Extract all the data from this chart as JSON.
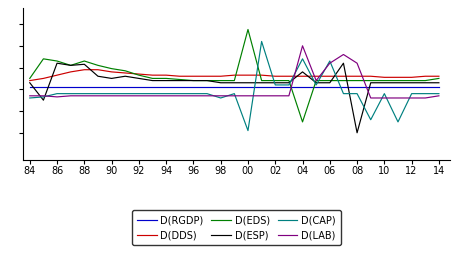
{
  "years": [
    1984,
    1985,
    1986,
    1987,
    1988,
    1989,
    1990,
    1991,
    1992,
    1993,
    1994,
    1995,
    1996,
    1997,
    1998,
    1999,
    2000,
    2001,
    2002,
    2003,
    2004,
    2005,
    2006,
    2007,
    2008,
    2009,
    2010,
    2011,
    2012,
    2013,
    2014
  ],
  "RGDP": [
    0.02,
    0.02,
    0.02,
    0.02,
    0.02,
    0.02,
    0.02,
    0.02,
    0.02,
    0.02,
    0.02,
    0.02,
    0.02,
    0.02,
    0.02,
    0.02,
    0.02,
    0.02,
    0.02,
    0.02,
    0.02,
    0.02,
    0.02,
    0.02,
    0.02,
    0.02,
    0.02,
    0.02,
    0.02,
    0.02,
    0.02
  ],
  "DDS": [
    0.08,
    0.1,
    0.13,
    0.16,
    0.18,
    0.18,
    0.16,
    0.15,
    0.14,
    0.13,
    0.13,
    0.12,
    0.12,
    0.12,
    0.12,
    0.13,
    0.13,
    0.13,
    0.12,
    0.12,
    0.12,
    0.12,
    0.12,
    0.12,
    0.12,
    0.12,
    0.11,
    0.11,
    0.11,
    0.12,
    0.12
  ],
  "EDS": [
    0.1,
    0.28,
    0.26,
    0.22,
    0.26,
    0.22,
    0.19,
    0.17,
    0.13,
    0.1,
    0.1,
    0.09,
    0.08,
    0.08,
    0.08,
    0.08,
    0.55,
    0.08,
    0.08,
    0.08,
    -0.3,
    0.08,
    0.08,
    0.08,
    0.08,
    0.08,
    0.08,
    0.08,
    0.08,
    0.08,
    0.1
  ],
  "ESP": [
    0.06,
    -0.1,
    0.24,
    0.22,
    0.23,
    0.12,
    0.1,
    0.12,
    0.1,
    0.08,
    0.08,
    0.08,
    0.08,
    0.08,
    0.06,
    0.06,
    0.06,
    0.06,
    0.06,
    0.06,
    0.16,
    0.06,
    0.06,
    0.24,
    -0.4,
    0.06,
    0.06,
    0.06,
    0.06,
    0.06,
    0.06
  ],
  "CAP": [
    -0.08,
    -0.07,
    -0.04,
    -0.04,
    -0.04,
    -0.04,
    -0.04,
    -0.04,
    -0.04,
    -0.04,
    -0.04,
    -0.04,
    -0.04,
    -0.04,
    -0.08,
    -0.04,
    -0.38,
    0.44,
    0.04,
    0.04,
    0.28,
    0.04,
    0.26,
    -0.04,
    -0.04,
    -0.28,
    -0.04,
    -0.3,
    -0.04,
    -0.04,
    -0.04
  ],
  "LAB": [
    -0.06,
    -0.06,
    -0.07,
    -0.06,
    -0.06,
    -0.06,
    -0.06,
    -0.06,
    -0.06,
    -0.06,
    -0.06,
    -0.06,
    -0.06,
    -0.06,
    -0.06,
    -0.06,
    -0.06,
    -0.06,
    -0.06,
    -0.06,
    0.4,
    0.08,
    0.24,
    0.32,
    0.24,
    -0.08,
    -0.08,
    -0.08,
    -0.08,
    -0.08,
    -0.06
  ],
  "colors": {
    "RGDP": "#0000cc",
    "DDS": "#cc0000",
    "EDS": "#008000",
    "ESP": "#000000",
    "CAP": "#008080",
    "LAB": "#800080"
  },
  "xlim": [
    1983.5,
    2014.8
  ],
  "ylim": [
    -0.65,
    0.75
  ],
  "xtick_vals": [
    1984,
    1986,
    1988,
    1990,
    1992,
    1994,
    1996,
    1998,
    2000,
    2002,
    2004,
    2006,
    2008,
    2010,
    2012,
    2014
  ],
  "xtick_labels": [
    "84",
    "86",
    "88",
    "90",
    "92",
    "94",
    "96",
    "98",
    "00",
    "02",
    "04",
    "06",
    "08",
    "10",
    "12",
    "14"
  ],
  "legend_labels": [
    "D(RGDP)",
    "D(DDS)",
    "D(EDS)",
    "D(ESP)",
    "D(CAP)",
    "D(LAB)"
  ]
}
